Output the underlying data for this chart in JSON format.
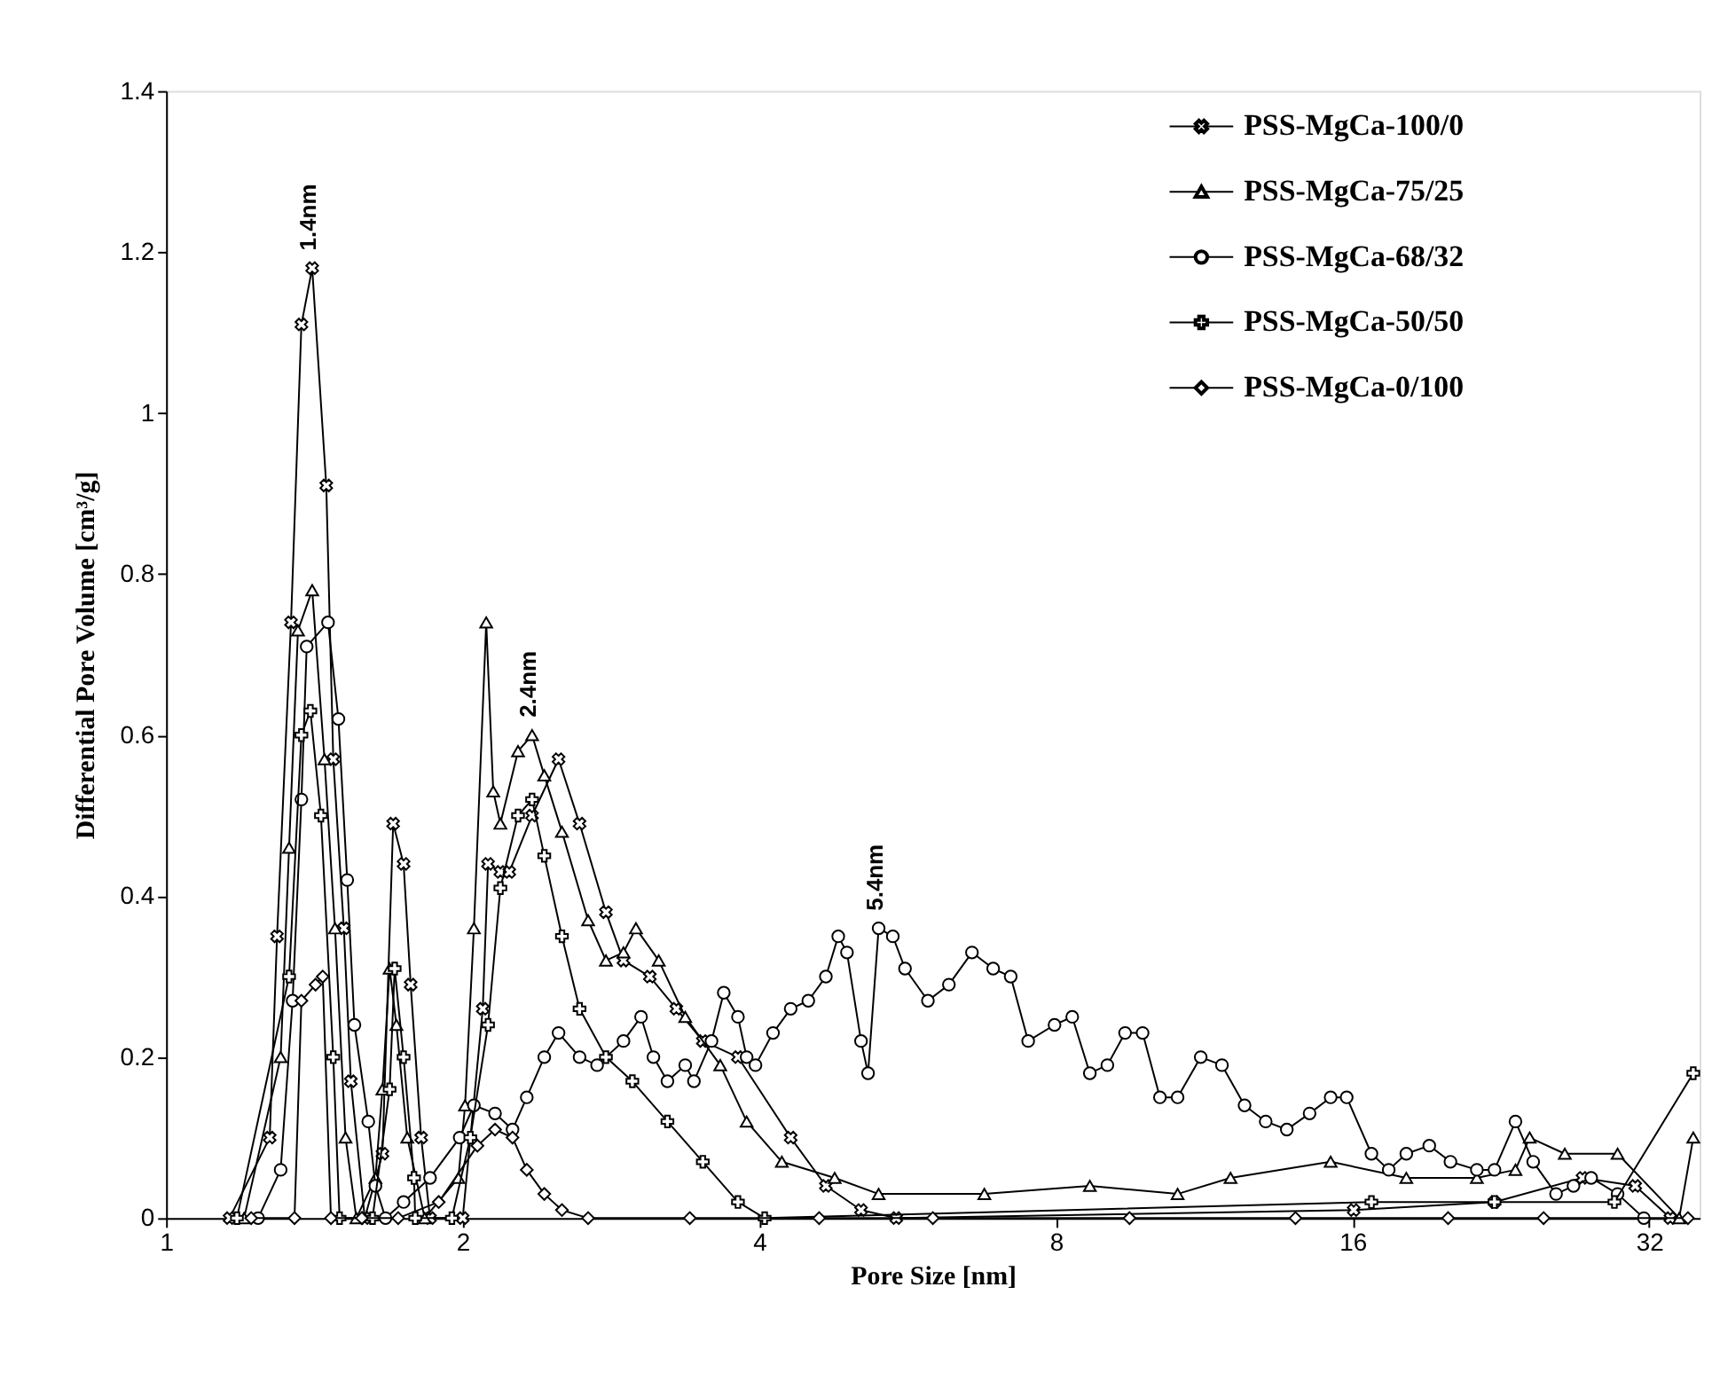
{
  "chart_data": {
    "type": "line",
    "xlabel": "Pore Size [nm]",
    "ylabel": "Differential Pore Volume [cm³/g]",
    "log": "x",
    "xlim": [
      1,
      36
    ],
    "xticks": [
      1,
      2,
      4,
      8,
      16,
      32
    ],
    "ylim": [
      0,
      1.4
    ],
    "yticks": [
      0,
      0.2,
      0.4,
      0.6,
      0.8,
      1,
      1.2,
      1.4
    ],
    "grid": false,
    "legend": "top right",
    "line_style": "solid",
    "annotations": [
      {
        "text": "1.4nm",
        "x": 1.407,
        "y": 1.18
      },
      {
        "text": "2.4nm",
        "x": 2.352,
        "y": 0.6
      },
      {
        "text": "5.4nm",
        "x": 5.286,
        "y": 0.36
      }
    ],
    "series": [
      {
        "name": "PSS-MgCa-100/0",
        "color": "#000000",
        "marker": "cross",
        "x": [
          1.16,
          1.274,
          1.296,
          1.339,
          1.372,
          1.407,
          1.454,
          1.478,
          1.515,
          1.54,
          1.591,
          1.658,
          1.7,
          1.742,
          1.771,
          1.815,
          1.853,
          2.0,
          2.096,
          2.122,
          2.184,
          2.23,
          2.352,
          2.502,
          2.628,
          2.795,
          2.912,
          3.097,
          3.295,
          3.505,
          3.805,
          4.304,
          4.673,
          5.073,
          5.508,
          16.04,
          22.29,
          27.38,
          30.97,
          33.62
        ],
        "values": [
          0,
          0.1,
          0.35,
          0.74,
          1.11,
          1.18,
          0.91,
          0.57,
          0.36,
          0.17,
          0,
          0.08,
          0.49,
          0.44,
          0.29,
          0.1,
          0,
          0,
          0.26,
          0.44,
          0.43,
          0.43,
          0.5,
          0.57,
          0.49,
          0.38,
          0.32,
          0.3,
          0.26,
          0.22,
          0.2,
          0.1,
          0.04,
          0.01,
          0,
          0.01,
          0.02,
          0.05,
          0.04,
          0
        ]
      },
      {
        "name": "PSS-MgCa-75/25",
        "color": "#000000",
        "marker": "triangle",
        "x": [
          1.2,
          1.307,
          1.333,
          1.361,
          1.407,
          1.448,
          1.484,
          1.521,
          1.56,
          1.631,
          1.658,
          1.686,
          1.713,
          1.757,
          1.83,
          1.98,
          2.011,
          2.053,
          2.113,
          2.148,
          2.184,
          2.276,
          2.352,
          2.42,
          2.522,
          2.681,
          2.795,
          2.912,
          2.998,
          3.162,
          3.364,
          3.651,
          3.883,
          4.216,
          4.77,
          5.286,
          6.767,
          8.659,
          10.63,
          12.03,
          15.2,
          18.14,
          21.39,
          23.41,
          24.2,
          26.27,
          29.72,
          34.32,
          35.47
        ],
        "values": [
          0,
          0.2,
          0.46,
          0.73,
          0.78,
          0.57,
          0.36,
          0.1,
          0,
          0.05,
          0.16,
          0.31,
          0.24,
          0.1,
          0,
          0.05,
          0.14,
          0.36,
          0.74,
          0.53,
          0.49,
          0.58,
          0.6,
          0.55,
          0.48,
          0.37,
          0.32,
          0.33,
          0.36,
          0.32,
          0.25,
          0.19,
          0.12,
          0.07,
          0.05,
          0.03,
          0.03,
          0.04,
          0.03,
          0.05,
          0.07,
          0.05,
          0.05,
          0.06,
          0.1,
          0.08,
          0.08,
          0,
          0.1
        ]
      },
      {
        "name": "PSS-MgCa-68/32",
        "color": "#000000",
        "marker": "circle",
        "x": [
          1.24,
          1.307,
          1.344,
          1.372,
          1.389,
          1.46,
          1.496,
          1.527,
          1.553,
          1.604,
          1.631,
          1.67,
          1.742,
          1.853,
          1.986,
          2.053,
          2.157,
          2.247,
          2.323,
          2.42,
          2.502,
          2.628,
          2.738,
          2.912,
          3.034,
          3.123,
          3.227,
          3.364,
          3.433,
          3.577,
          3.681,
          3.805,
          3.883,
          3.964,
          4.13,
          4.304,
          4.485,
          4.673,
          4.81,
          4.909,
          5.073,
          5.157,
          5.286,
          5.464,
          5.622,
          5.931,
          6.229,
          6.574,
          6.908,
          7.197,
          7.497,
          7.973,
          8.31,
          8.659,
          9.021,
          9.402,
          9.795,
          10.2,
          10.63,
          11.22,
          11.79,
          12.43,
          13.06,
          13.72,
          14.47,
          15.2,
          15.78,
          16.72,
          17.41,
          18.14,
          19.14,
          20.11,
          21.39,
          22.29,
          23.41,
          24.4,
          25.74,
          26.81,
          27.94,
          29.72,
          31.6
        ],
        "values": [
          0,
          0.06,
          0.27,
          0.52,
          0.71,
          0.74,
          0.62,
          0.42,
          0.24,
          0.12,
          0.04,
          0,
          0.02,
          0.05,
          0.1,
          0.14,
          0.13,
          0.11,
          0.15,
          0.2,
          0.23,
          0.2,
          0.19,
          0.22,
          0.25,
          0.2,
          0.17,
          0.19,
          0.17,
          0.22,
          0.28,
          0.25,
          0.2,
          0.19,
          0.23,
          0.26,
          0.27,
          0.3,
          0.35,
          0.33,
          0.22,
          0.18,
          0.36,
          0.35,
          0.31,
          0.27,
          0.29,
          0.33,
          0.31,
          0.3,
          0.22,
          0.24,
          0.25,
          0.18,
          0.19,
          0.23,
          0.23,
          0.15,
          0.15,
          0.2,
          0.19,
          0.14,
          0.12,
          0.11,
          0.13,
          0.15,
          0.15,
          0.08,
          0.06,
          0.08,
          0.09,
          0.07,
          0.06,
          0.06,
          0.12,
          0.07,
          0.03,
          0.04,
          0.05,
          0.03,
          0
        ]
      },
      {
        "name": "PSS-MgCa-50/50",
        "color": "#000000",
        "marker": "cross",
        "x": [
          1.18,
          1.333,
          1.372,
          1.401,
          1.436,
          1.478,
          1.5,
          1.62,
          1.686,
          1.706,
          1.742,
          1.785,
          1.79,
          1.95,
          2.036,
          2.122,
          2.184,
          2.276,
          2.352,
          2.42,
          2.522,
          2.628,
          2.795,
          2.973,
          3.227,
          3.505,
          3.805,
          4.05,
          16.72,
          22.29,
          29.5,
          35.47
        ],
        "values": [
          0,
          0.3,
          0.6,
          0.63,
          0.5,
          0.2,
          0,
          0,
          0.16,
          0.31,
          0.2,
          0.05,
          0,
          0,
          0.1,
          0.24,
          0.41,
          0.5,
          0.52,
          0.45,
          0.35,
          0.26,
          0.2,
          0.17,
          0.12,
          0.07,
          0.02,
          0,
          0.02,
          0.02,
          0.02,
          0.18
        ]
      },
      {
        "name": "PSS-MgCa-0/100",
        "color": "#000000",
        "marker": "diamond",
        "x": [
          1.22,
          1.35,
          1.372,
          1.418,
          1.442,
          1.47,
          1.58,
          1.72,
          1.891,
          2.07,
          2.157,
          2.247,
          2.323,
          2.42,
          2.522,
          2.681,
          3.4,
          4.6,
          6.0,
          9.5,
          14.0,
          20.0,
          25.0,
          35.03
        ],
        "values": [
          0,
          0,
          0.27,
          0.29,
          0.3,
          0,
          0,
          0,
          0.02,
          0.09,
          0.11,
          0.1,
          0.06,
          0.03,
          0.01,
          0,
          0,
          0,
          0,
          0,
          0,
          0,
          0,
          0
        ]
      }
    ]
  }
}
